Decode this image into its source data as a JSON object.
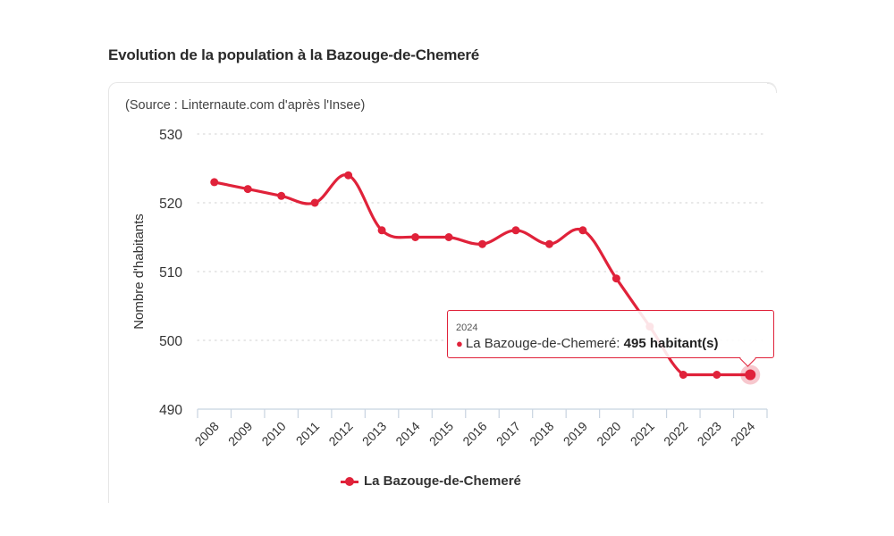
{
  "header": {
    "title": "Evolution de la population à la Bazouge-de-Chemeré"
  },
  "card": {
    "source": "(Source : Linternaute.com d'après l'Insee)"
  },
  "tooltip": {
    "year": "2024",
    "series_label": "La Bazouge-de-Chemeré:",
    "value_label": "495 habitant(s)"
  },
  "legend": {
    "label": "La Bazouge-de-Chemeré"
  },
  "colors": {
    "series": "#e0223a",
    "grid": "#d9d9d9",
    "axis": "#c8d3e0"
  },
  "chart_data": {
    "type": "line",
    "title": "Evolution de la population à la Bazouge-de-Chemeré",
    "subtitle": "(Source : Linternaute.com d'après l'Insee)",
    "xlabel": "",
    "ylabel": "Nombre d'habitants",
    "categories": [
      "2008",
      "2009",
      "2010",
      "2011",
      "2012",
      "2013",
      "2014",
      "2015",
      "2016",
      "2017",
      "2018",
      "2019",
      "2020",
      "2021",
      "2022",
      "2023",
      "2024"
    ],
    "series": [
      {
        "name": "La Bazouge-de-Chemeré",
        "values": [
          523,
          522,
          521,
          520,
          524,
          516,
          515,
          515,
          514,
          516,
          514,
          516,
          509,
          502,
          495,
          495,
          495
        ]
      }
    ],
    "ylim": [
      490,
      530
    ],
    "yticks": [
      490,
      500,
      510,
      520,
      530
    ],
    "grid": true,
    "legend_position": "bottom-center",
    "highlighted": {
      "category": "2024",
      "value": 495
    }
  }
}
